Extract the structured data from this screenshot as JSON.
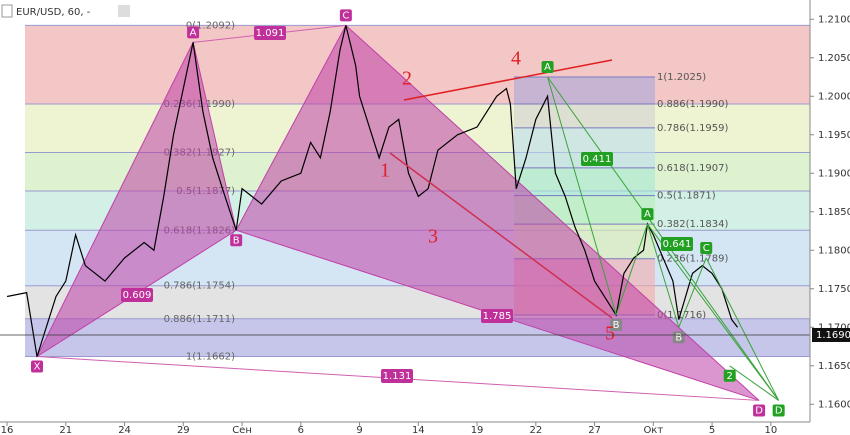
{
  "header": {
    "symbol": "EUR/USD, 60, -"
  },
  "chart_data": {
    "type": "line",
    "color": "#000000",
    "x": [
      0,
      1,
      1.53,
      2.5,
      3,
      3.5,
      4,
      5,
      6,
      7,
      7.5,
      8,
      8.5,
      9.5,
      10,
      10.5,
      11,
      11.7,
      12,
      12.5,
      13,
      14,
      15,
      15.5,
      16,
      16.5,
      17,
      17.3,
      17.8,
      18,
      18.5,
      19,
      19.5,
      20,
      20.5,
      21,
      21.5,
      22,
      23,
      24,
      24.5,
      25,
      25.5,
      25.7,
      26,
      26.5,
      27,
      27.6,
      28,
      28.5,
      29,
      29.5,
      30,
      30.5,
      31.1,
      31.5,
      32,
      32.5,
      32.7,
      33,
      33.5,
      34,
      34.3,
      35,
      35.5,
      36,
      36.5,
      37,
      37.3
    ],
    "values": [
      1.174,
      1.1745,
      1.1662,
      1.174,
      1.176,
      1.182,
      1.178,
      1.176,
      1.179,
      1.181,
      1.18,
      1.187,
      1.195,
      1.207,
      1.198,
      1.192,
      1.188,
      1.1826,
      1.188,
      1.187,
      1.186,
      1.189,
      1.19,
      1.194,
      1.192,
      1.198,
      1.206,
      1.2092,
      1.204,
      1.2,
      1.196,
      1.192,
      1.196,
      1.197,
      1.19,
      1.187,
      1.188,
      1.193,
      1.195,
      1.196,
      1.198,
      1.2,
      1.201,
      1.199,
      1.188,
      1.192,
      1.197,
      1.2,
      1.19,
      1.187,
      1.183,
      1.18,
      1.176,
      1.174,
      1.1716,
      1.177,
      1.179,
      1.18,
      1.1834,
      1.182,
      1.179,
      1.176,
      1.171,
      1.177,
      1.178,
      1.177,
      1.175,
      1.171,
      1.17
    ],
    "xlim": [
      -0.36,
      41
    ],
    "ylim": [
      1.1577,
      1.2125
    ],
    "xticks": [
      {
        "value": 0,
        "label": "16"
      },
      {
        "value": 3,
        "label": "21"
      },
      {
        "value": 6,
        "label": "24"
      },
      {
        "value": 9,
        "label": "29"
      },
      {
        "value": 12,
        "label": "Сен"
      },
      {
        "value": 15,
        "label": "6"
      },
      {
        "value": 18,
        "label": "9"
      },
      {
        "value": 21,
        "label": "14"
      },
      {
        "value": 24,
        "label": "19"
      },
      {
        "value": 27,
        "label": "22"
      },
      {
        "value": 30,
        "label": "27"
      },
      {
        "value": 33,
        "label": "Окт"
      },
      {
        "value": 36,
        "label": "5"
      },
      {
        "value": 39,
        "label": "10"
      }
    ],
    "yticks": [
      {
        "value": 1.21,
        "label": "1.2100"
      },
      {
        "value": 1.205,
        "label": "1.2050"
      },
      {
        "value": 1.2,
        "label": "1.2000"
      },
      {
        "value": 1.195,
        "label": "1.1950"
      },
      {
        "value": 1.19,
        "label": "1.1900"
      },
      {
        "value": 1.185,
        "label": "1.1850"
      },
      {
        "value": 1.18,
        "label": "1.1800"
      },
      {
        "value": 1.175,
        "label": "1.1750"
      },
      {
        "value": 1.17,
        "label": "1.1700"
      },
      {
        "value": 1.165,
        "label": "1.1650"
      },
      {
        "value": 1.16,
        "label": "1.1600"
      }
    ],
    "last_price": {
      "value": 1.169,
      "label": "1.1690"
    },
    "fib_left": [
      {
        "label": "0(1.2092)",
        "price": 1.2092,
        "color": "#f4c7c7"
      },
      {
        "label": "0.236(1.1990)",
        "price": 1.199,
        "color": "#eef4d2"
      },
      {
        "label": "0.382(1.1927)",
        "price": 1.1927,
        "color": "#def2cf"
      },
      {
        "label": "0.5(1.1877)",
        "price": 1.1877,
        "color": "#d3f0e6"
      },
      {
        "label": "0.618(1.1826)",
        "price": 1.1826,
        "color": "#d4e6f4"
      },
      {
        "label": "0.786(1.1754)",
        "price": 1.1754,
        "color": "#e3e3e3"
      },
      {
        "label": "0.886(1.1711)",
        "price": 1.1711,
        "color": "#c6c6ea"
      },
      {
        "label": "1(1.1662)",
        "price": 1.1662,
        "color": "#c6c6ea"
      }
    ],
    "fib_right": [
      {
        "label": "1(1.2025)",
        "price": 1.2025,
        "color": "#a6a6d8"
      },
      {
        "label": "0.886(1.1990)",
        "price": 1.199,
        "color": "#d0d0d0"
      },
      {
        "label": "0.786(1.1959)",
        "price": 1.1959,
        "color": "#bcdcef"
      },
      {
        "label": "0.618(1.1907)",
        "price": 1.1907,
        "color": "#a9e8d6"
      },
      {
        "label": "0.5(1.1871)",
        "price": 1.1871,
        "color": "#b8eeb8"
      },
      {
        "label": "0.382(1.1834)",
        "price": 1.1834,
        "color": "#e0f0b0"
      },
      {
        "label": "0.236(1.1789)",
        "price": 1.1789,
        "color": "#f3aaaa"
      },
      {
        "label": "0(1.1716)",
        "price": 1.1716,
        "color": "#f3aaaa"
      }
    ],
    "harmonic_left": [
      {
        "name": "X",
        "x": 1.53,
        "price": 1.1662
      },
      {
        "name": "A",
        "x": 9.5,
        "price": 1.207
      },
      {
        "name": "B",
        "x": 11.7,
        "price": 1.1826
      },
      {
        "name": "C",
        "x": 17.3,
        "price": 1.2092
      },
      {
        "name": "D",
        "x": 38.4,
        "price": 1.1605
      }
    ],
    "harmonic_right": [
      {
        "name": "A",
        "x": 27.6,
        "price": 1.2025
      },
      {
        "name": "B",
        "x": 31.1,
        "price": 1.1716
      },
      {
        "name": "A",
        "x": 32.7,
        "price": 1.1834
      },
      {
        "name": "B",
        "x": 34.3,
        "price": 1.17
      },
      {
        "name": "C",
        "x": 35.7,
        "price": 1.179
      },
      {
        "name": "2",
        "x": 36.9,
        "price": 1.165
      },
      {
        "name": "D",
        "x": 39.4,
        "price": 1.1605
      }
    ],
    "ratios": [
      1.091,
      0.609,
      1.785,
      1.131,
      0.411,
      0.641
    ],
    "waves": [
      "1",
      "2",
      "3",
      "4",
      "5"
    ]
  }
}
